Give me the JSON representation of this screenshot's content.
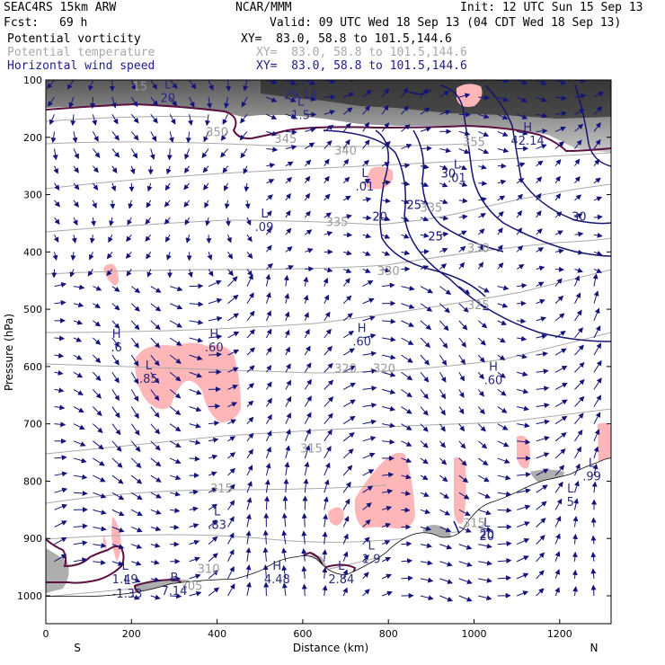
{
  "header": {
    "model": "SEAC4RS 15km ARW",
    "org": "NCAR/MMM",
    "init": "Init: 12 UTC Sun 15 Sep 13",
    "fcst_label": "Fcst:",
    "fcst_value": "69 h",
    "valid": "Valid: 09 UTC Wed 18 Sep 13 (04 CDT Wed 18 Sep 13)",
    "fields": [
      {
        "name": "Potential vorticity",
        "xy": "XY=  83.0, 58.8 to 101.5,144.6",
        "color": "#000000"
      },
      {
        "name": "Potential temperature",
        "xy": "XY=  83.0, 58.8 to 101.5,144.6",
        "color": "#a9a9a9"
      },
      {
        "name": "Horizontal wind speed",
        "xy": "XY=  83.0, 58.8 to 101.5,144.6",
        "color": "#1c1c8c"
      }
    ]
  },
  "chart_data": {
    "type": "cross-section",
    "xlabel": "Distance (km)",
    "ylabel": "Pressure (hPa)",
    "x_ticks": [
      "0",
      "200",
      "400",
      "600",
      "800",
      "1000",
      "1200"
    ],
    "y_ticks": [
      "100",
      "200",
      "300",
      "400",
      "500",
      "600",
      "700",
      "800",
      "900",
      "1000"
    ],
    "xlim": [
      0,
      1320
    ],
    "ylim": [
      1050,
      100
    ],
    "end_labels": {
      "left": "S",
      "right": "N"
    },
    "theta_labels": [
      {
        "text": "315",
        "x": 620,
        "p": 750
      },
      {
        "text": "315",
        "x": 410,
        "p": 820
      },
      {
        "text": "320",
        "x": 700,
        "p": 610
      },
      {
        "text": "320",
        "x": 790,
        "p": 610
      },
      {
        "text": "325",
        "x": 1010,
        "p": 500
      },
      {
        "text": "330",
        "x": 800,
        "p": 440
      },
      {
        "text": "330",
        "x": 1010,
        "p": 400
      },
      {
        "text": "335",
        "x": 680,
        "p": 355
      },
      {
        "text": "335",
        "x": 900,
        "p": 330
      },
      {
        "text": "340",
        "x": 700,
        "p": 230
      },
      {
        "text": "345",
        "x": 560,
        "p": 210
      },
      {
        "text": "350",
        "x": 400,
        "p": 198
      },
      {
        "text": "355",
        "x": 1000,
        "p": 215
      },
      {
        "text": "305",
        "x": 340,
        "p": 990
      },
      {
        "text": "310",
        "x": 380,
        "p": 960
      },
      {
        "text": "315",
        "x": 1000,
        "p": 880
      },
      {
        "text": "15",
        "x": 220,
        "p": 118
      }
    ],
    "wind_labels": [
      {
        "text": "20",
        "x": 780,
        "p": 345
      },
      {
        "text": "25",
        "x": 860,
        "p": 325
      },
      {
        "text": "25",
        "x": 910,
        "p": 380
      },
      {
        "text": "30",
        "x": 940,
        "p": 270
      },
      {
        "text": "30",
        "x": 1245,
        "p": 345
      },
      {
        "text": "20",
        "x": 1030,
        "p": 900
      }
    ],
    "extrema": [
      {
        "kind": "L",
        "value": "20",
        "x": 285,
        "p": 135
      },
      {
        "kind": "H",
        "value": "29.14",
        "x": 595,
        "p": 130
      },
      {
        "kind": "L",
        "value": "1.5",
        "x": 595,
        "p": 165
      },
      {
        "kind": "H",
        "value": "42.14",
        "x": 1125,
        "p": 210
      },
      {
        "kind": "L",
        "value": ".01",
        "x": 960,
        "p": 275
      },
      {
        "kind": "L",
        "value": ".01",
        "x": 745,
        "p": 290
      },
      {
        "kind": "L",
        "value": ".09",
        "x": 510,
        "p": 360
      },
      {
        "kind": "H",
        "value": ".6",
        "x": 165,
        "p": 570
      },
      {
        "kind": "L",
        "value": ".85",
        "x": 240,
        "p": 625
      },
      {
        "kind": "H",
        "value": ".60",
        "x": 393,
        "p": 570
      },
      {
        "kind": "H",
        "value": ".60",
        "x": 738,
        "p": 560
      },
      {
        "kind": "H",
        "value": ".60",
        "x": 1045,
        "p": 628
      },
      {
        "kind": "L",
        "value": ".83",
        "x": 400,
        "p": 880
      },
      {
        "kind": "L",
        "value": ".99",
        "x": 1275,
        "p": 795
      },
      {
        "kind": "L",
        "value": "1.49",
        "x": 185,
        "p": 975
      },
      {
        "kind": "L",
        "value": "-1.33",
        "x": 190,
        "p": 1000
      },
      {
        "kind": "B",
        "value": "7.14",
        "x": 300,
        "p": 995
      },
      {
        "kind": "H",
        "value": "4.48",
        "x": 540,
        "p": 975
      },
      {
        "kind": "L",
        "value": "2.84",
        "x": 690,
        "p": 975
      },
      {
        "kind": "L",
        "value": "1.9",
        "x": 760,
        "p": 940
      },
      {
        "kind": "L",
        "value": "20",
        "x": 1030,
        "p": 900
      },
      {
        "kind": "L",
        "value": "5",
        "x": 1225,
        "p": 840
      }
    ],
    "colors": {
      "pv_shading": "#5a5a5a",
      "pv_contour": "#5a1040",
      "theta": "#a9a9a9",
      "wind": "#141470",
      "positive_pv_pink": "#ffb6b9",
      "vectors": "#14147a"
    }
  }
}
